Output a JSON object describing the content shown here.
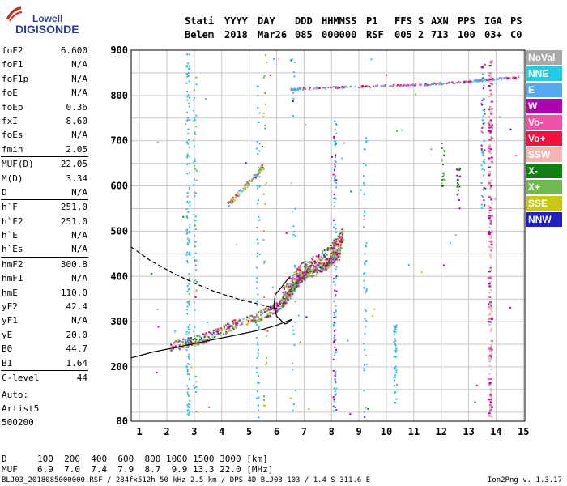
{
  "logo": {
    "line1": "Lowell",
    "line2": "DIGISONDE"
  },
  "header": {
    "labels": [
      "Stati",
      "YYYY",
      "DAY",
      "DDD",
      "HHMMSS",
      "P1",
      "FFS",
      "S",
      "AXN",
      "PPS",
      "IGA",
      "PS"
    ],
    "values": [
      "Belem",
      "2018",
      "Mar26",
      "085",
      "000000",
      "RSF",
      "005",
      "2",
      "713",
      "100",
      "03+",
      "C0"
    ]
  },
  "params": [
    {
      "label": "foF2",
      "value": "6.600"
    },
    {
      "label": "foF1",
      "value": "N/A"
    },
    {
      "label": "foF1p",
      "value": "N/A"
    },
    {
      "label": "foE",
      "value": "N/A"
    },
    {
      "label": "foEp",
      "value": "0.36"
    },
    {
      "label": "fxI",
      "value": "8.60"
    },
    {
      "label": "foEs",
      "value": "N/A"
    },
    {
      "label": "fmin",
      "value": "2.05"
    },
    {
      "label": "MUF(D)",
      "value": "22.05",
      "sep": true
    },
    {
      "label": "M(D)",
      "value": "3.34"
    },
    {
      "label": "D",
      "value": "N/A"
    },
    {
      "label": "h`F",
      "value": "251.0",
      "sep": true
    },
    {
      "label": "h`F2",
      "value": "251.0"
    },
    {
      "label": "h`E",
      "value": "N/A"
    },
    {
      "label": "h`Es",
      "value": "N/A"
    },
    {
      "label": "hmF2",
      "value": "300.8",
      "sep": true
    },
    {
      "label": "hmF1",
      "value": "N/A"
    },
    {
      "label": "hmE",
      "value": "110.0"
    },
    {
      "label": "yF2",
      "value": "42.4"
    },
    {
      "label": "yF1",
      "value": "N/A"
    },
    {
      "label": "yE",
      "value": "20.0"
    },
    {
      "label": "B0",
      "value": "44.7"
    },
    {
      "label": "B1",
      "value": "1.64"
    },
    {
      "label": "C-level",
      "value": "44",
      "sep": true
    }
  ],
  "auto": {
    "line1": "Auto:",
    "line2": "Artist5",
    "line3": "500200"
  },
  "mufTable": {
    "dLabel": "D",
    "dValues": "100  200  400  600  800 1000 1500 3000 [km]",
    "mufLabel": "MUF",
    "mufValues": "6.9  7.0  7.4  7.9  8.7  9.9 13.3 22.0 [MHz]"
  },
  "footer": {
    "file": "BLJ03_2018085000000.RSF / 284fx512h 50 kHz 2.5 km / DPS-4D BLJ03 103 / 1.4 S 311.6 E",
    "version": "Ion2Png v. 1.3.17"
  },
  "legend": [
    {
      "label": "NoVal",
      "color": "#a8a8a8"
    },
    {
      "label": "NNE",
      "color": "#22cce4"
    },
    {
      "label": "E",
      "color": "#55a8f0"
    },
    {
      "label": "W",
      "color": "#b000b0"
    },
    {
      "label": "Vo-",
      "color": "#f050a8"
    },
    {
      "label": "Vo+",
      "color": "#f01040"
    },
    {
      "label": "SSW",
      "color": "#f4b4b4"
    },
    {
      "label": "X-",
      "color": "#108010"
    },
    {
      "label": "X+",
      "color": "#70b850"
    },
    {
      "label": "SSE",
      "color": "#c8c810"
    },
    {
      "label": "NNW",
      "color": "#2020c0"
    }
  ],
  "chart_data": {
    "type": "scatter",
    "xlabel": "",
    "ylabel": "",
    "xlim": [
      0.7,
      15.05
    ],
    "ylim": [
      80,
      900
    ],
    "x_ticks": [
      1,
      2,
      3,
      4,
      5,
      6,
      7,
      8,
      9,
      10,
      11,
      12,
      13,
      14,
      15
    ],
    "y_ticks": [
      80,
      200,
      300,
      400,
      500,
      600,
      700,
      800,
      900
    ],
    "grid": true,
    "scale": "frequency linear (MHz), virtual height linear (km)",
    "series": [
      {
        "name": "NoVal",
        "color": "#a8a8a8"
      },
      {
        "name": "NNE",
        "color": "#22cce4"
      },
      {
        "name": "E",
        "color": "#55a8f0"
      },
      {
        "name": "W",
        "color": "#b000b0"
      },
      {
        "name": "Vo-",
        "color": "#f050a8"
      },
      {
        "name": "Vo+",
        "color": "#f01040"
      },
      {
        "name": "SSW",
        "color": "#f4b4b4"
      },
      {
        "name": "X-",
        "color": "#108010"
      },
      {
        "name": "X+",
        "color": "#70b850"
      },
      {
        "name": "SSE",
        "color": "#c8c810"
      },
      {
        "name": "NNW",
        "color": "#2020c0"
      }
    ],
    "trace_O": [
      [
        2.1,
        245
      ],
      [
        2.5,
        252
      ],
      [
        3.0,
        258
      ],
      [
        3.5,
        268
      ],
      [
        4.0,
        282
      ],
      [
        4.5,
        296
      ],
      [
        5.0,
        305
      ],
      [
        5.5,
        318
      ],
      [
        5.9,
        330
      ],
      [
        6.2,
        345
      ],
      [
        6.5,
        365
      ],
      [
        6.7,
        385
      ],
      [
        6.9,
        400
      ],
      [
        7.2,
        410
      ],
      [
        7.5,
        418
      ],
      [
        7.8,
        428
      ],
      [
        8.0,
        440
      ],
      [
        8.3,
        450
      ]
    ],
    "trace_X": [
      [
        6.2,
        355
      ],
      [
        6.5,
        380
      ],
      [
        6.8,
        408
      ],
      [
        7.1,
        420
      ],
      [
        7.5,
        432
      ],
      [
        7.9,
        448
      ],
      [
        8.2,
        470
      ],
      [
        8.4,
        490
      ]
    ],
    "trace_F_upper": [
      [
        4.2,
        560
      ],
      [
        4.6,
        585
      ],
      [
        5.0,
        610
      ],
      [
        5.3,
        630
      ],
      [
        5.5,
        650
      ]
    ],
    "trace_top": [
      [
        6.5,
        815
      ],
      [
        7.5,
        818
      ],
      [
        8.5,
        820
      ],
      [
        9.5,
        822
      ],
      [
        10.5,
        824
      ],
      [
        11.5,
        826
      ],
      [
        12.5,
        830
      ],
      [
        13.2,
        834
      ],
      [
        14.0,
        838
      ],
      [
        14.8,
        842
      ]
    ],
    "profile_solid": [
      [
        0.7,
        220
      ],
      [
        1.5,
        233
      ],
      [
        2.5,
        245
      ],
      [
        3.5,
        258
      ],
      [
        4.5,
        270
      ],
      [
        5.5,
        283
      ],
      [
        6.0,
        292
      ],
      [
        6.35,
        300
      ],
      [
        6.55,
        305
      ],
      [
        6.4,
        297
      ],
      [
        6.3,
        295
      ],
      [
        6.0,
        312
      ],
      [
        5.9,
        335
      ],
      [
        5.95,
        360
      ],
      [
        6.1,
        370
      ],
      [
        6.35,
        390
      ],
      [
        6.5,
        400
      ]
    ],
    "profile_dashed": [
      [
        0.7,
        465
      ],
      [
        1.4,
        435
      ],
      [
        2.2,
        408
      ],
      [
        3.0,
        385
      ],
      [
        3.8,
        365
      ],
      [
        4.6,
        350
      ],
      [
        5.4,
        338
      ],
      [
        5.9,
        330
      ],
      [
        6.2,
        328
      ]
    ]
  }
}
